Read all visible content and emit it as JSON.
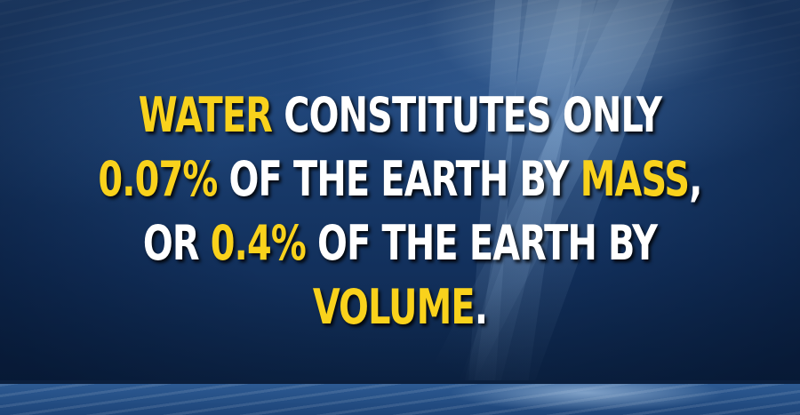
{
  "fact": {
    "line1": {
      "highlight": "WATER",
      "rest": " CONSTITUTES ONLY"
    },
    "line2": {
      "highlight1": "0.07%",
      "middle": " OF THE EARTH BY ",
      "highlight2": "MASS",
      "end": ","
    },
    "line3": {
      "start": "OR ",
      "highlight": "0.4%",
      "rest": " OF THE EARTH BY"
    },
    "line4": {
      "highlight": "VOLUME",
      "end": "."
    }
  },
  "colors": {
    "highlight": "#f9d21c",
    "text": "#ffffff",
    "background": "#183a6a"
  },
  "background": {
    "scene": "underwater-light-rays"
  }
}
